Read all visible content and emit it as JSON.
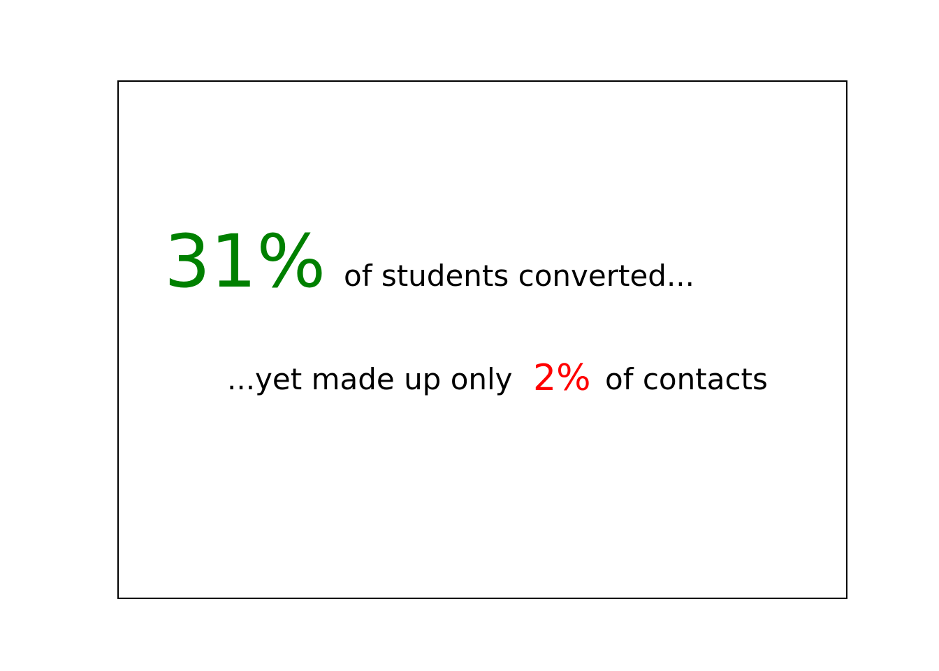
{
  "chart_data": {
    "type": "table",
    "title": "",
    "statements": [
      {
        "value": 31,
        "value_label": "31%",
        "text": "of students converted...",
        "value_color": "#008000"
      },
      {
        "lead_text": "...yet made up only",
        "value": 2,
        "value_label": "2%",
        "text": "of contacts",
        "value_color": "#ff0000"
      }
    ],
    "grid": false
  }
}
